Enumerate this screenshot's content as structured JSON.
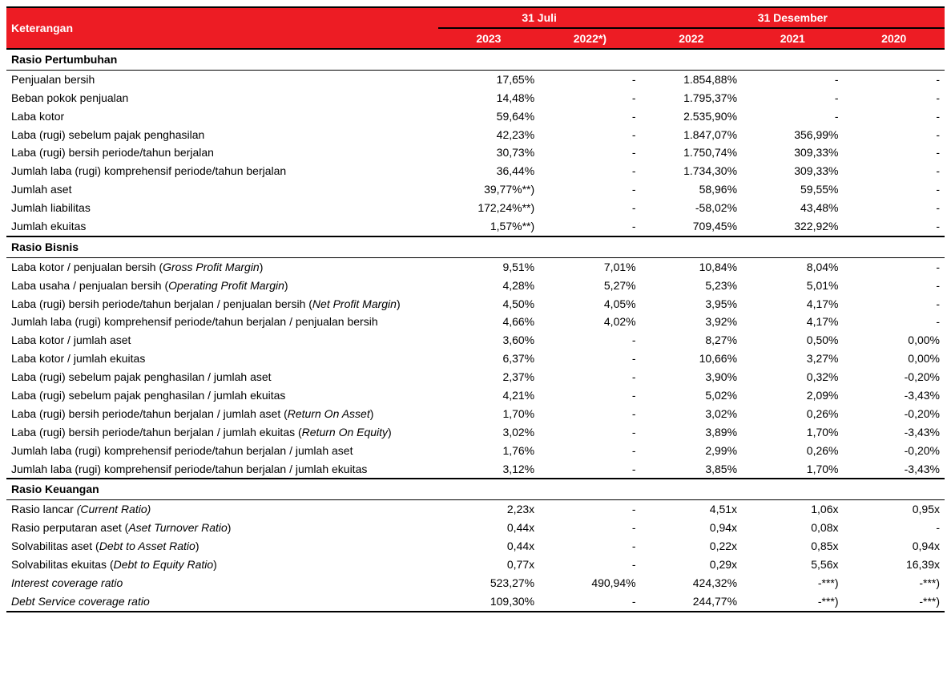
{
  "colors": {
    "header_bg": "#ed1c24",
    "header_fg": "#ffffff",
    "border": "#000000",
    "text": "#000000",
    "bg": "#ffffff"
  },
  "header": {
    "keterangan": "Keterangan",
    "group_jul": "31 Juli",
    "group_des": "31 Desember",
    "y2023": "2023",
    "y2022s": "2022*)",
    "y2022": "2022",
    "y2021": "2021",
    "y2020": "2020"
  },
  "sections": {
    "pertumbuhan": "Rasio Pertumbuhan",
    "bisnis": "Rasio Bisnis",
    "keuangan": "Rasio Keuangan"
  },
  "rows": {
    "p1": {
      "label": "Penjualan bersih",
      "c1": "17,65%",
      "c2": "-",
      "c3": "1.854,88%",
      "c4": "-",
      "c5": "-"
    },
    "p2": {
      "label": "Beban pokok penjualan",
      "c1": "14,48%",
      "c2": "-",
      "c3": "1.795,37%",
      "c4": "-",
      "c5": "-"
    },
    "p3": {
      "label": "Laba kotor",
      "c1": "59,64%",
      "c2": "-",
      "c3": "2.535,90%",
      "c4": "-",
      "c5": "-"
    },
    "p4": {
      "label": "Laba (rugi) sebelum pajak penghasilan",
      "c1": "42,23%",
      "c2": "-",
      "c3": "1.847,07%",
      "c4": "356,99%",
      "c5": "-"
    },
    "p5": {
      "label": "Laba (rugi) bersih periode/tahun berjalan",
      "c1": "30,73%",
      "c2": "-",
      "c3": "1.750,74%",
      "c4": "309,33%",
      "c5": "-"
    },
    "p6": {
      "label": "Jumlah laba (rugi) komprehensif periode/tahun berjalan",
      "c1": "36,44%",
      "c2": "-",
      "c3": "1.734,30%",
      "c4": "309,33%",
      "c5": "-"
    },
    "p7": {
      "label": "Jumlah aset",
      "c1": "39,77%**)",
      "c2": "-",
      "c3": "58,96%",
      "c4": "59,55%",
      "c5": "-"
    },
    "p8": {
      "label": "Jumlah liabilitas",
      "c1": "172,24%**)",
      "c2": "-",
      "c3": "-58,02%",
      "c4": "43,48%",
      "c5": "-"
    },
    "p9": {
      "label": "Jumlah ekuitas",
      "c1": "1,57%**)",
      "c2": "-",
      "c3": "709,45%",
      "c4": "322,92%",
      "c5": "-"
    },
    "b1": {
      "label_html": "Laba kotor / penjualan bersih (<em>Gross Profit Margin</em>)",
      "c1": "9,51%",
      "c2": "7,01%",
      "c3": "10,84%",
      "c4": "8,04%",
      "c5": "-"
    },
    "b2": {
      "label_html": "Laba usaha / penjualan bersih (<em>Operating Profit Margin</em>)",
      "c1": "4,28%",
      "c2": "5,27%",
      "c3": "5,23%",
      "c4": "5,01%",
      "c5": "-"
    },
    "b3": {
      "label_html": "Laba (rugi) bersih periode/tahun berjalan / penjualan bersih (<em>Net Profit Margin</em>)",
      "c1": "4,50%",
      "c2": "4,05%",
      "c3": "3,95%",
      "c4": "4,17%",
      "c5": "-"
    },
    "b4": {
      "label": "Jumlah laba (rugi) komprehensif periode/tahun berjalan / penjualan bersih",
      "c1": "4,66%",
      "c2": "4,02%",
      "c3": "3,92%",
      "c4": "4,17%",
      "c5": "-"
    },
    "b5": {
      "label": "Laba kotor / jumlah aset",
      "c1": "3,60%",
      "c2": "-",
      "c3": "8,27%",
      "c4": "0,50%",
      "c5": "0,00%"
    },
    "b6": {
      "label": "Laba kotor / jumlah ekuitas",
      "c1": "6,37%",
      "c2": "-",
      "c3": "10,66%",
      "c4": "3,27%",
      "c5": "0,00%"
    },
    "b7": {
      "label": "Laba (rugi) sebelum pajak penghasilan / jumlah aset",
      "c1": "2,37%",
      "c2": "-",
      "c3": "3,90%",
      "c4": "0,32%",
      "c5": "-0,20%"
    },
    "b8": {
      "label": "Laba (rugi) sebelum pajak penghasilan / jumlah ekuitas",
      "c1": "4,21%",
      "c2": "-",
      "c3": "5,02%",
      "c4": "2,09%",
      "c5": "-3,43%"
    },
    "b9": {
      "label_html": "Laba (rugi) bersih periode/tahun berjalan / jumlah aset (<em>Return On Asset</em>)",
      "c1": "1,70%",
      "c2": "-",
      "c3": "3,02%",
      "c4": "0,26%",
      "c5": "-0,20%"
    },
    "b10": {
      "label_html": "Laba (rugi) bersih periode/tahun berjalan / jumlah ekuitas (<em>Return On Equity</em>)",
      "c1": "3,02%",
      "c2": "-",
      "c3": "3,89%",
      "c4": "1,70%",
      "c5": "-3,43%"
    },
    "b11": {
      "label": "Jumlah laba (rugi) komprehensif periode/tahun berjalan / jumlah aset",
      "c1": "1,76%",
      "c2": "-",
      "c3": "2,99%",
      "c4": "0,26%",
      "c5": "-0,20%"
    },
    "b12": {
      "label": "Jumlah laba (rugi) komprehensif periode/tahun berjalan / jumlah ekuitas",
      "c1": "3,12%",
      "c2": "-",
      "c3": "3,85%",
      "c4": "1,70%",
      "c5": "-3,43%"
    },
    "k1": {
      "label_html": "Rasio lancar <em>(Current Ratio)</em>",
      "c1": "2,23x",
      "c2": "-",
      "c3": "4,51x",
      "c4": "1,06x",
      "c5": "0,95x"
    },
    "k2": {
      "label_html": "Rasio perputaran aset (<em>Aset Turnover Ratio</em>)",
      "c1": "0,44x",
      "c2": "-",
      "c3": "0,94x",
      "c4": "0,08x",
      "c5": "-"
    },
    "k3": {
      "label_html": "Solvabilitas aset (<em>Debt to Asset Ratio</em>)",
      "c1": "0,44x",
      "c2": "-",
      "c3": "0,22x",
      "c4": "0,85x",
      "c5": "0,94x"
    },
    "k4": {
      "label_html": "Solvabilitas ekuitas (<em>Debt to Equity Ratio</em>)",
      "c1": "0,77x",
      "c2": "-",
      "c3": "0,29x",
      "c4": "5,56x",
      "c5": "16,39x"
    },
    "k5": {
      "label_html": "<em>Interest coverage ratio</em>",
      "c1": "523,27%",
      "c2": "490,94%",
      "c3": "424,32%",
      "c4": "-***)",
      "c5": "-***)"
    },
    "k6": {
      "label_html": "<em>Debt Service coverage ratio</em>",
      "c1": "109,30%",
      "c2": "-",
      "c3": "244,77%",
      "c4": "-***)",
      "c5": "-***)"
    }
  }
}
